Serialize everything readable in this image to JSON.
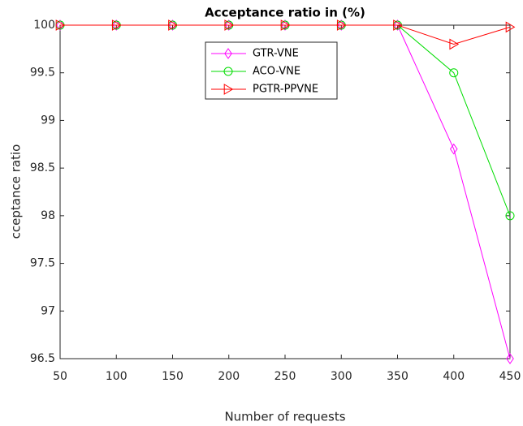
{
  "chart_data": {
    "type": "line",
    "title": "Acceptance ratio in (%)",
    "xlabel": "Number of requests",
    "ylabel": "cceptance ratio",
    "x": [
      50,
      100,
      150,
      200,
      250,
      300,
      350,
      400,
      450
    ],
    "series": [
      {
        "name": "GTR-VNE",
        "color": "#ff00ff",
        "marker": "diamond",
        "values": [
          100,
          100,
          100,
          100,
          100,
          100,
          100,
          98.7,
          96.5
        ]
      },
      {
        "name": "ACO-VNE",
        "color": "#00dd00",
        "marker": "circle",
        "values": [
          100,
          100,
          100,
          100,
          100,
          100,
          100,
          99.5,
          98
        ]
      },
      {
        "name": "PGTR-PPVNE",
        "color": "#ff0000",
        "marker": "triangle-right",
        "values": [
          100,
          100,
          100,
          100,
          100,
          100,
          100,
          99.8,
          99.98
        ]
      }
    ],
    "xlim": [
      50,
      450
    ],
    "xticks": [
      50,
      100,
      150,
      200,
      250,
      300,
      350,
      400,
      450
    ],
    "ylim": [
      96.5,
      100
    ],
    "yticks": [
      96.5,
      97,
      97.5,
      98,
      98.5,
      99,
      99.5,
      100
    ],
    "legend": "top-center"
  }
}
